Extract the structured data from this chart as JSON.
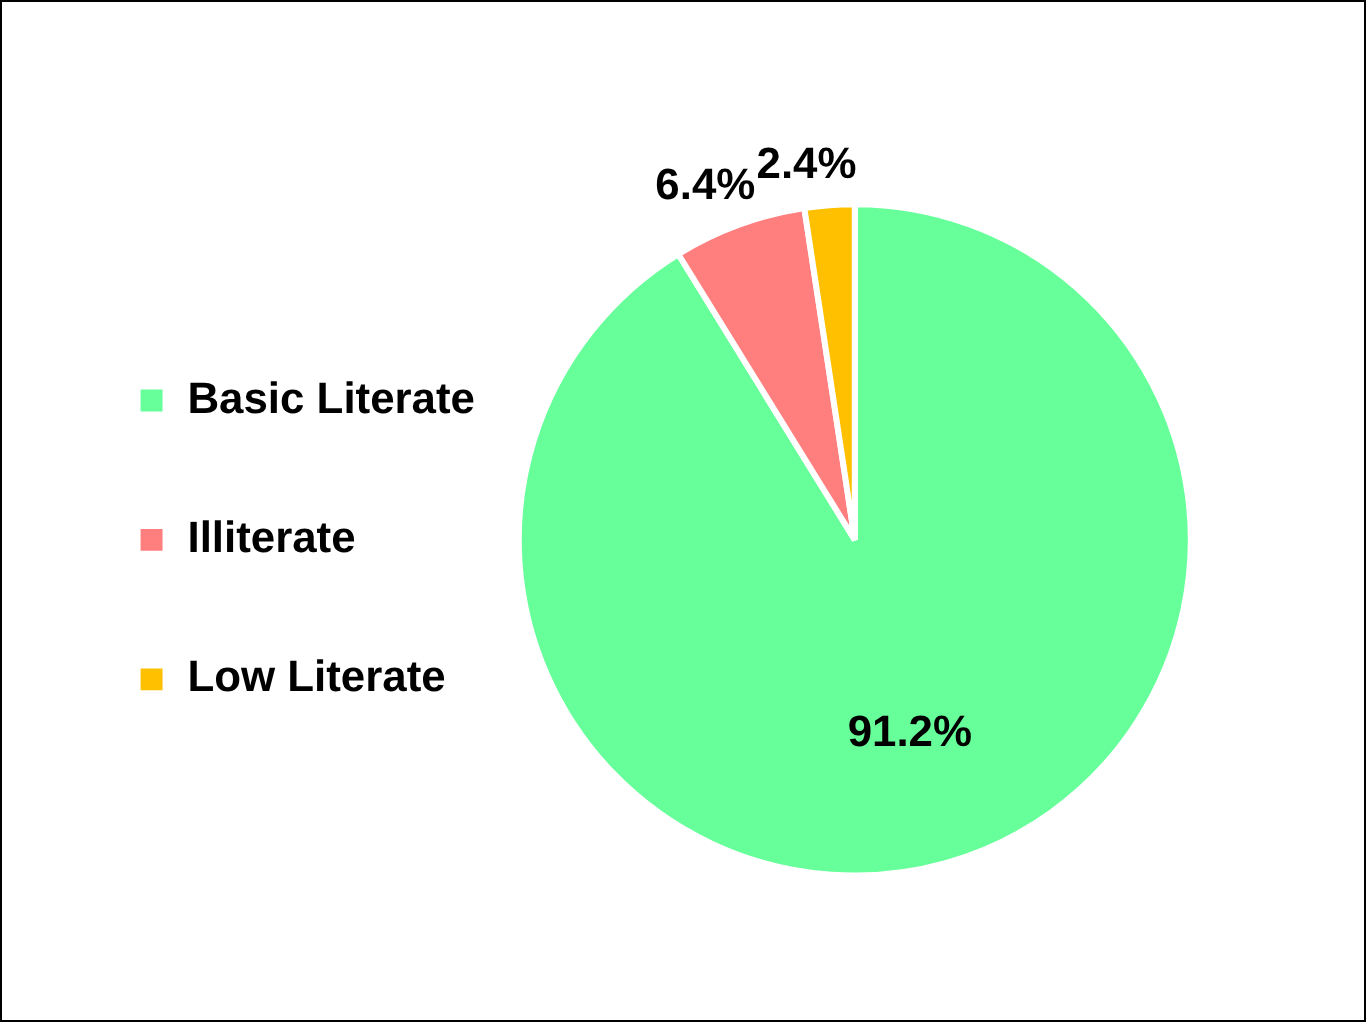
{
  "chart_data": {
    "type": "pie",
    "categories": [
      "Basic Literate",
      "Illiterate",
      "Low Literate"
    ],
    "values": [
      91.2,
      6.4,
      2.4
    ],
    "value_labels": [
      "91.2%",
      "6.4%",
      "2.4%"
    ],
    "colors": [
      "#66ff99",
      "#ff7f7f",
      "#ffc000"
    ],
    "legend": "left"
  }
}
